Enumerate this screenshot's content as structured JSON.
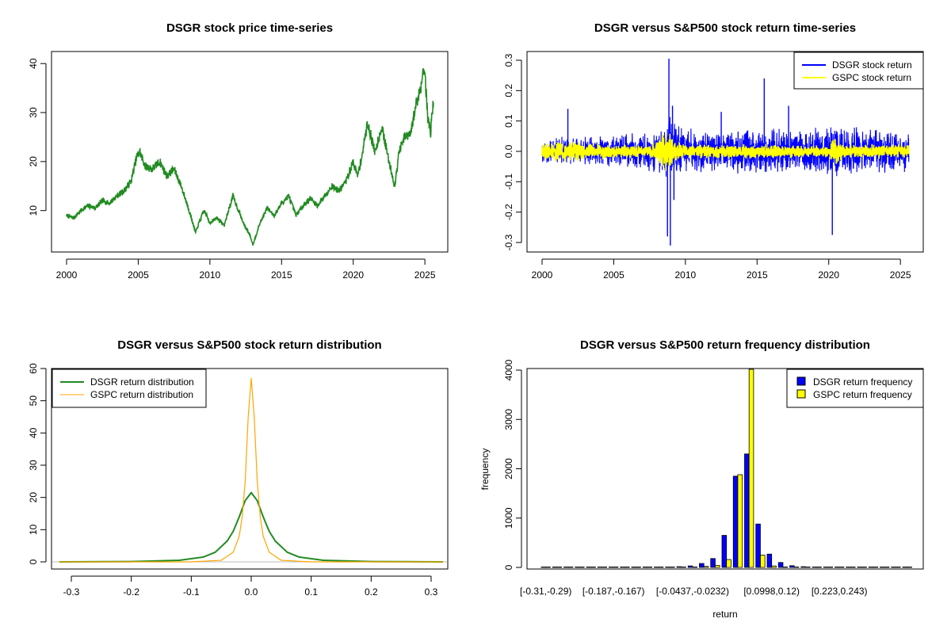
{
  "chart_data": [
    {
      "id": "price",
      "type": "line",
      "title": "DSGR stock price time-series",
      "xlabel": "",
      "ylabel": "",
      "xlim": [
        2000,
        2025.6
      ],
      "ylim": [
        3,
        41
      ],
      "x_ticks": [
        "2000",
        "2005",
        "2010",
        "2015",
        "2020",
        "2025"
      ],
      "y_ticks": [
        "10",
        "20",
        "30",
        "40"
      ],
      "series": [
        {
          "color": "#228b22",
          "x": [
            2000.0,
            2000.5,
            2001.0,
            2001.5,
            2002.0,
            2002.5,
            2003.0,
            2003.5,
            2004.0,
            2004.5,
            2004.9,
            2005.1,
            2005.5,
            2006.0,
            2006.5,
            2007.0,
            2007.5,
            2008.0,
            2008.5,
            2009.0,
            2009.3,
            2009.6,
            2010.0,
            2010.5,
            2011.0,
            2011.3,
            2011.6,
            2012.0,
            2012.4,
            2012.8,
            2013.0,
            2013.5,
            2014.0,
            2014.5,
            2015.0,
            2015.5,
            2016.0,
            2016.5,
            2017.0,
            2017.5,
            2018.0,
            2018.5,
            2019.0,
            2019.5,
            2020.0,
            2020.3,
            2020.6,
            2021.0,
            2021.5,
            2022.0,
            2022.5,
            2022.9,
            2023.2,
            2023.6,
            2024.0,
            2024.4,
            2024.7,
            2024.95,
            2025.2,
            2025.4,
            2025.6
          ],
          "y": [
            9,
            8.5,
            10,
            11,
            10.5,
            12,
            11.5,
            13,
            14,
            16,
            21,
            22,
            19,
            18.5,
            20,
            17,
            18.5,
            15,
            10.5,
            5.5,
            8,
            10,
            7.5,
            8.5,
            7,
            10,
            13,
            10,
            7,
            5,
            3,
            7.5,
            10.5,
            9,
            11.5,
            13,
            9,
            11,
            12.5,
            11,
            13,
            15,
            14,
            16,
            20,
            17,
            21,
            28,
            22,
            27,
            20,
            15,
            22,
            25,
            25.5,
            32,
            35,
            40,
            29,
            26,
            33
          ]
        }
      ]
    },
    {
      "id": "returns",
      "type": "line",
      "title": "DSGR versus S&P500 stock return time-series",
      "xlabel": "",
      "ylabel": "",
      "xlim": [
        2000,
        2025.6
      ],
      "ylim": [
        -0.31,
        0.31
      ],
      "x_ticks": [
        "2000",
        "2005",
        "2010",
        "2015",
        "2020",
        "2025"
      ],
      "y_ticks": [
        "-0.3",
        "-0.2",
        "-0.1",
        "0.0",
        "0.1",
        "0.2",
        "0.3"
      ],
      "legend": {
        "position": "top-right"
      },
      "series": [
        {
          "name": "DSGR stock return",
          "color": "#0000ff",
          "band": {
            "x": [
              2000,
              2003,
              2005,
              2008,
              2008.7,
              2009.5,
              2010.5,
              2012,
              2015,
              2018,
              2020,
              2021,
              2023,
              2025.6
            ],
            "high": [
              0.05,
              0.05,
              0.06,
              0.07,
              0.12,
              0.1,
              0.08,
              0.07,
              0.08,
              0.08,
              0.09,
              0.09,
              0.08,
              0.07
            ],
            "low": [
              -0.05,
              -0.05,
              -0.06,
              -0.07,
              -0.12,
              -0.1,
              -0.08,
              -0.07,
              -0.08,
              -0.08,
              -0.09,
              -0.09,
              -0.08,
              -0.07
            ]
          },
          "spikes": [
            {
              "x": 2008.85,
              "y": 0.305
            },
            {
              "x": 2008.95,
              "y": -0.31
            },
            {
              "x": 2008.75,
              "y": -0.28
            },
            {
              "x": 2009.2,
              "y": -0.16
            },
            {
              "x": 2009.1,
              "y": 0.15
            },
            {
              "x": 2015.5,
              "y": 0.24
            },
            {
              "x": 2020.25,
              "y": -0.275
            },
            {
              "x": 2017.2,
              "y": 0.15
            },
            {
              "x": 2012.5,
              "y": 0.13
            },
            {
              "x": 2001.8,
              "y": 0.14
            }
          ]
        },
        {
          "name": "GSPC stock return",
          "color": "#ffff00",
          "band": {
            "x": [
              2000,
              2002.5,
              2003,
              2007.5,
              2008.7,
              2009.4,
              2010,
              2015,
              2020,
              2020.4,
              2021,
              2025.6
            ],
            "high": [
              0.03,
              0.04,
              0.03,
              0.02,
              0.08,
              0.04,
              0.025,
              0.025,
              0.02,
              0.06,
              0.025,
              0.025
            ],
            "low": [
              -0.03,
              -0.04,
              -0.03,
              -0.02,
              -0.08,
              -0.04,
              -0.025,
              -0.025,
              -0.02,
              -0.07,
              -0.025,
              -0.025
            ]
          }
        }
      ]
    },
    {
      "id": "density",
      "type": "line",
      "title": "DSGR versus S&P500 stock return distribution",
      "xlabel": "",
      "ylabel": "",
      "xlim": [
        -0.32,
        0.32
      ],
      "ylim": [
        0,
        60
      ],
      "x_ticks": [
        "-0.3",
        "-0.2",
        "-0.1",
        "0.0",
        "0.1",
        "0.2",
        "0.3"
      ],
      "y_ticks": [
        "0",
        "10",
        "20",
        "30",
        "40",
        "50",
        "60"
      ],
      "legend": {
        "position": "top-left"
      },
      "series": [
        {
          "name": "DSGR return distribution",
          "color": "#228b22",
          "x": [
            -0.32,
            -0.2,
            -0.12,
            -0.08,
            -0.06,
            -0.04,
            -0.03,
            -0.02,
            -0.01,
            0.0,
            0.01,
            0.02,
            0.03,
            0.04,
            0.06,
            0.08,
            0.12,
            0.2,
            0.32
          ],
          "y": [
            0,
            0.1,
            0.5,
            1.5,
            3.0,
            6.5,
            9.5,
            14.0,
            19.0,
            21.5,
            19.0,
            14.0,
            9.5,
            6.5,
            3.0,
            1.5,
            0.5,
            0.1,
            0
          ]
        },
        {
          "name": "GSPC return distribution",
          "color": "#ffa500",
          "x": [
            -0.32,
            -0.1,
            -0.05,
            -0.03,
            -0.02,
            -0.015,
            -0.01,
            -0.005,
            0.0,
            0.005,
            0.01,
            0.015,
            0.02,
            0.03,
            0.05,
            0.1,
            0.32
          ],
          "y": [
            0,
            0,
            0.5,
            3,
            8,
            14,
            25,
            45,
            57,
            45,
            25,
            14,
            8,
            3,
            0.5,
            0,
            0
          ]
        }
      ]
    },
    {
      "id": "freq",
      "type": "bar",
      "title": "DSGR versus S&P500 return frequency distribution",
      "xlabel": "return",
      "ylabel": "frequency",
      "ylim": [
        0,
        4000
      ],
      "y_ticks": [
        "0",
        "1000",
        "2000",
        "3000",
        "4000"
      ],
      "legend": {
        "position": "top-right"
      },
      "category_tick_labels": [
        "[-0.31,-0.29)",
        "[-0.187,-0.167)",
        "[-0.0437,-0.0232)",
        "[0.0998,0.12)",
        "[0.223,0.243)"
      ],
      "series": [
        {
          "name": "DSGR return frequency",
          "color": "#0000ff",
          "values": [
            1,
            1,
            1,
            1,
            1,
            1,
            1,
            1,
            1,
            1,
            2,
            5,
            15,
            30,
            80,
            180,
            650,
            1850,
            2300,
            880,
            270,
            100,
            35,
            15,
            8,
            5,
            3,
            2,
            1,
            1,
            1,
            1,
            1
          ]
        },
        {
          "name": "GSPC return frequency",
          "color": "#ffff00",
          "values": [
            0,
            0,
            0,
            0,
            0,
            0,
            0,
            0,
            0,
            0,
            0,
            1,
            3,
            8,
            20,
            40,
            160,
            1880,
            4100,
            250,
            30,
            10,
            5,
            2,
            1,
            0,
            0,
            0,
            0,
            0,
            0,
            0,
            0
          ]
        }
      ]
    }
  ]
}
